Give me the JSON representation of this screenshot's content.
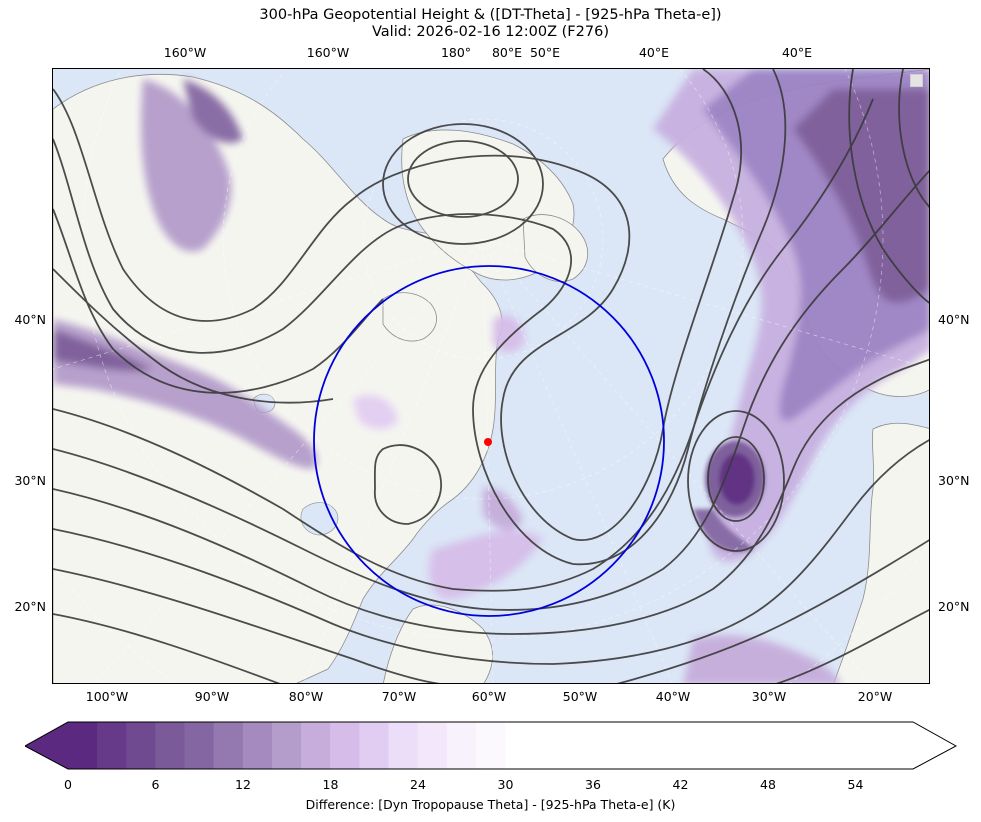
{
  "title": {
    "line1": "300-hPa Geopotential Height & ([DT-Theta] - [925-hPa Theta-e])",
    "line2": "Valid: 2026-02-16 12:00Z (F276)"
  },
  "axes": {
    "top_ticks": [
      "160°W",
      "160°W",
      "180°",
      "80°E",
      "50°E",
      "40°E",
      "40°E"
    ],
    "bottom_ticks": [
      "100°W",
      "90°W",
      "80°W",
      "70°W",
      "60°W",
      "50°W",
      "40°W",
      "30°W",
      "20°W"
    ],
    "left_ticks": [
      "40°N",
      "30°N",
      "20°N"
    ],
    "right_ticks": [
      "40°N",
      "30°N",
      "20°N"
    ]
  },
  "map": {
    "projection": "north-polar stereographic",
    "ocean_color": "#dbe6f6",
    "land_color": "#f5f5f0",
    "shading_palette": "purples",
    "contour_field": "300-hPa geopotential height",
    "contour_color": "#3a3a3a",
    "highlight_circle_color": "#0000dd",
    "marker_color": "#ff0000"
  },
  "colorbar": {
    "label": "Difference: [Dyn Tropopause Theta] - [925-hPa Theta-e] (K)",
    "ticks": [
      "0",
      "6",
      "12",
      "18",
      "24",
      "30",
      "36",
      "42",
      "48",
      "54"
    ],
    "min": 0,
    "max": 58,
    "step": 2,
    "colored_until": 28,
    "extend": "both",
    "colors": [
      "#5b2a80",
      "#663a88",
      "#704a90",
      "#7a5a98",
      "#8466a2",
      "#9478b0",
      "#a48abe",
      "#b49ccb",
      "#c6addb",
      "#d6bde9",
      "#e2cdf2",
      "#ecddf8",
      "#f3e8fb",
      "#f8f2fd",
      "#fbf8fe"
    ]
  }
}
